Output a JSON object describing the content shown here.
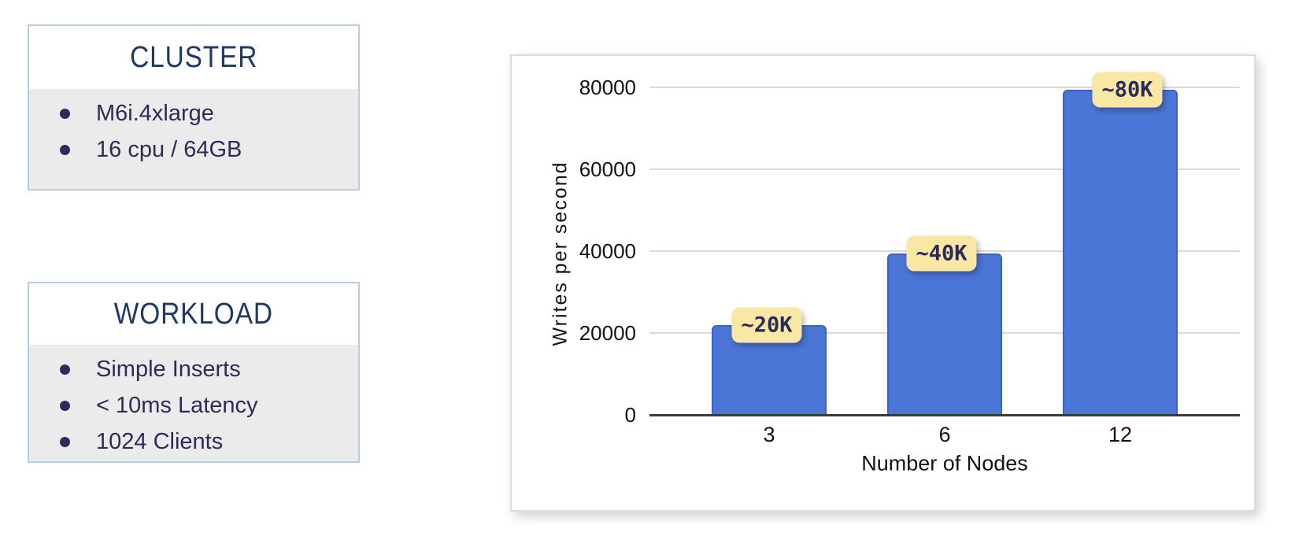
{
  "info_boxes": [
    {
      "title": "CLUSTER",
      "items": [
        "M6i.4xlarge",
        "16 cpu / 64GB"
      ]
    },
    {
      "title": "WORKLOAD",
      "items": [
        "Simple Inserts",
        "< 10ms Latency",
        "1024 Clients"
      ]
    }
  ],
  "chart_data": {
    "type": "bar",
    "title": "",
    "xlabel": "Number of Nodes",
    "ylabel": "Writes per second",
    "categories": [
      "3",
      "6",
      "12"
    ],
    "values": [
      22000,
      39500,
      79500
    ],
    "bar_labels": [
      "~20K",
      "~40K",
      "~80K"
    ],
    "yticks": [
      0,
      20000,
      40000,
      60000,
      80000
    ],
    "ylim": [
      0,
      80000
    ],
    "grid": true,
    "legend": "none",
    "colors": {
      "bar_fill": "#4B75D6",
      "bar_border": "#3A63C2",
      "label_bg": "#F9E7A4",
      "label_text": "#2B2A5C",
      "gridline": "#d9d9d9",
      "box_border": "#b7cde1",
      "box_body_bg": "#ECEBEB",
      "box_title_text": "#1E3A63",
      "box_item_text": "#2F2A58"
    }
  }
}
